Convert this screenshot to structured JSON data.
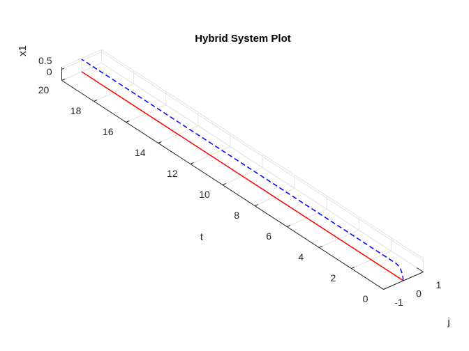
{
  "chart_data": {
    "type": "line3d",
    "title": "Hybrid System Plot",
    "t_label": "t",
    "j_label": "j",
    "z_label": "x1",
    "tlim": [
      0,
      20
    ],
    "tticks": [
      0,
      2,
      4,
      6,
      8,
      10,
      12,
      14,
      16,
      18,
      20
    ],
    "jlim": [
      -1,
      1
    ],
    "jticks": [
      -1,
      0,
      1
    ],
    "zlim": [
      0,
      0.6
    ],
    "zticks": [
      0,
      0.5
    ],
    "grid": true,
    "series": [
      {
        "color": "#ff0000",
        "dash": false,
        "j": 0,
        "t": [
          0,
          20
        ],
        "values": [
          0,
          0
        ]
      },
      {
        "color": "#0000ff",
        "dash": true,
        "j": 0,
        "t": [
          0,
          0.05,
          0.1,
          0.2,
          0.3,
          0.45,
          20
        ],
        "values": [
          0,
          0.2,
          0.33,
          0.46,
          0.52,
          0.56,
          0.56
        ]
      }
    ]
  }
}
